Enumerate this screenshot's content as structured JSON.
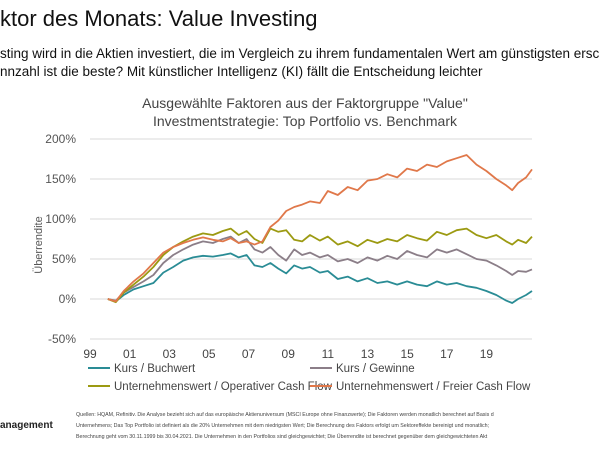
{
  "header": {
    "title": "ktor des Monats: Value Investing",
    "subtitle_line1": "sting wird in die Aktien investiert, die im Vergleich zu ihrem fundamentalen Wert am günstigsten ersch",
    "subtitle_line2": "nnzahl ist die beste? Mit künstlicher Intelligenz (KI) fällt die Entscheidung leichter"
  },
  "footer": {
    "brand": "anagement",
    "source_line1": "Quellen: HQAM, Refinitiv. Die Analyse bezieht sich auf das europäische Aktienuniversum (MSCI Europe ohne Finanzwerte); Die Faktoren werden monatlich berechnet auf Basis d",
    "source_line2": "Unternehmens; Das Top Portfolio ist definiert als die 20% Unternehmen mit dem niedrigsten Wert; Die Berechnung des Faktors erfolgt um Sektoreffekte bereinigt und monatlich;",
    "source_line3": "Berechnung geht vom 30.11.1999 bis 30.04.2021. Die Unternehmen in den Portfolios sind gleichgewichtet; Die Überrendite ist berechnet gegenüber dem gleichgewichteten Akt"
  },
  "chart_data": {
    "type": "line",
    "title_line1": "Ausgewählte Faktoren aus der Faktorgruppe \"Value\"",
    "title_line2": "Investmentstrategie: Top Portfolio vs. Benchmark",
    "ylabel": "Überrendite",
    "xlabel": "",
    "x_range": [
      1999,
      2021.3
    ],
    "ylim": [
      -50,
      200
    ],
    "y_ticks": [
      -50,
      0,
      50,
      100,
      150,
      200
    ],
    "y_tick_labels": [
      "-50%",
      "0%",
      "50%",
      "100%",
      "150%",
      "200%"
    ],
    "x_ticks": [
      1999,
      2001,
      2003,
      2005,
      2007,
      2009,
      2011,
      2013,
      2015,
      2017,
      2019
    ],
    "x_tick_labels": [
      "99",
      "01",
      "03",
      "05",
      "07",
      "09",
      "11",
      "13",
      "15",
      "17",
      "19"
    ],
    "grid": true,
    "legend_position": "bottom",
    "series": [
      {
        "name": "Kurs / Buchwert",
        "color": "#2a8c95",
        "points": [
          [
            1999.9,
            0
          ],
          [
            2000.3,
            -3
          ],
          [
            2000.7,
            5
          ],
          [
            2001.2,
            12
          ],
          [
            2001.7,
            16
          ],
          [
            2002.2,
            20
          ],
          [
            2002.7,
            33
          ],
          [
            2003.2,
            40
          ],
          [
            2003.7,
            48
          ],
          [
            2004.2,
            52
          ],
          [
            2004.7,
            54
          ],
          [
            2005.2,
            53
          ],
          [
            2005.7,
            55
          ],
          [
            2006.1,
            57
          ],
          [
            2006.5,
            52
          ],
          [
            2006.9,
            55
          ],
          [
            2007.3,
            42
          ],
          [
            2007.7,
            40
          ],
          [
            2008.1,
            45
          ],
          [
            2008.5,
            38
          ],
          [
            2008.9,
            32
          ],
          [
            2009.3,
            42
          ],
          [
            2009.7,
            38
          ],
          [
            2010.1,
            40
          ],
          [
            2010.6,
            33
          ],
          [
            2011.0,
            35
          ],
          [
            2011.5,
            25
          ],
          [
            2012.0,
            28
          ],
          [
            2012.5,
            22
          ],
          [
            2013.0,
            26
          ],
          [
            2013.5,
            20
          ],
          [
            2014.0,
            22
          ],
          [
            2014.5,
            18
          ],
          [
            2015.0,
            22
          ],
          [
            2015.5,
            18
          ],
          [
            2016.0,
            16
          ],
          [
            2016.5,
            22
          ],
          [
            2017.0,
            18
          ],
          [
            2017.5,
            20
          ],
          [
            2018.0,
            16
          ],
          [
            2018.5,
            14
          ],
          [
            2019.0,
            10
          ],
          [
            2019.5,
            5
          ],
          [
            2020.0,
            -2
          ],
          [
            2020.3,
            -5
          ],
          [
            2020.6,
            0
          ],
          [
            2021.0,
            5
          ],
          [
            2021.3,
            10
          ]
        ]
      },
      {
        "name": "Kurs / Gewinne",
        "color": "#8b7e88",
        "points": [
          [
            1999.9,
            0
          ],
          [
            2000.3,
            -2
          ],
          [
            2000.7,
            8
          ],
          [
            2001.2,
            15
          ],
          [
            2001.7,
            22
          ],
          [
            2002.2,
            30
          ],
          [
            2002.7,
            45
          ],
          [
            2003.2,
            55
          ],
          [
            2003.7,
            62
          ],
          [
            2004.2,
            68
          ],
          [
            2004.7,
            72
          ],
          [
            2005.2,
            70
          ],
          [
            2005.7,
            75
          ],
          [
            2006.1,
            78
          ],
          [
            2006.5,
            70
          ],
          [
            2006.9,
            75
          ],
          [
            2007.3,
            62
          ],
          [
            2007.7,
            58
          ],
          [
            2008.1,
            65
          ],
          [
            2008.5,
            55
          ],
          [
            2008.9,
            48
          ],
          [
            2009.3,
            62
          ],
          [
            2009.7,
            55
          ],
          [
            2010.1,
            58
          ],
          [
            2010.6,
            52
          ],
          [
            2011.0,
            55
          ],
          [
            2011.5,
            47
          ],
          [
            2012.0,
            50
          ],
          [
            2012.5,
            45
          ],
          [
            2013.0,
            52
          ],
          [
            2013.5,
            48
          ],
          [
            2014.0,
            54
          ],
          [
            2014.5,
            50
          ],
          [
            2015.0,
            60
          ],
          [
            2015.5,
            55
          ],
          [
            2016.0,
            52
          ],
          [
            2016.5,
            62
          ],
          [
            2017.0,
            58
          ],
          [
            2017.5,
            62
          ],
          [
            2018.0,
            56
          ],
          [
            2018.5,
            50
          ],
          [
            2019.0,
            48
          ],
          [
            2019.5,
            42
          ],
          [
            2020.0,
            35
          ],
          [
            2020.3,
            30
          ],
          [
            2020.6,
            35
          ],
          [
            2021.0,
            34
          ],
          [
            2021.3,
            37
          ]
        ]
      },
      {
        "name": "Unternehmenswert / Operativer Cash Flow",
        "color": "#9c9a12",
        "points": [
          [
            1999.9,
            0
          ],
          [
            2000.3,
            -4
          ],
          [
            2000.7,
            8
          ],
          [
            2001.2,
            18
          ],
          [
            2001.7,
            28
          ],
          [
            2002.2,
            40
          ],
          [
            2002.7,
            55
          ],
          [
            2003.2,
            65
          ],
          [
            2003.7,
            72
          ],
          [
            2004.2,
            78
          ],
          [
            2004.7,
            82
          ],
          [
            2005.2,
            80
          ],
          [
            2005.7,
            85
          ],
          [
            2006.1,
            88
          ],
          [
            2006.5,
            80
          ],
          [
            2006.9,
            85
          ],
          [
            2007.3,
            75
          ],
          [
            2007.7,
            70
          ],
          [
            2008.1,
            88
          ],
          [
            2008.5,
            84
          ],
          [
            2008.9,
            86
          ],
          [
            2009.3,
            74
          ],
          [
            2009.7,
            72
          ],
          [
            2010.1,
            80
          ],
          [
            2010.6,
            73
          ],
          [
            2011.0,
            78
          ],
          [
            2011.5,
            68
          ],
          [
            2012.0,
            72
          ],
          [
            2012.5,
            66
          ],
          [
            2013.0,
            74
          ],
          [
            2013.5,
            70
          ],
          [
            2014.0,
            75
          ],
          [
            2014.5,
            72
          ],
          [
            2015.0,
            80
          ],
          [
            2015.5,
            76
          ],
          [
            2016.0,
            73
          ],
          [
            2016.5,
            84
          ],
          [
            2017.0,
            80
          ],
          [
            2017.5,
            86
          ],
          [
            2018.0,
            88
          ],
          [
            2018.5,
            80
          ],
          [
            2019.0,
            76
          ],
          [
            2019.5,
            80
          ],
          [
            2020.0,
            72
          ],
          [
            2020.3,
            68
          ],
          [
            2020.6,
            74
          ],
          [
            2021.0,
            70
          ],
          [
            2021.3,
            78
          ]
        ]
      },
      {
        "name": "Unternehmenswert / Freier Cash Flow",
        "color": "#e0784a",
        "points": [
          [
            1999.9,
            0
          ],
          [
            2000.3,
            -3
          ],
          [
            2000.7,
            10
          ],
          [
            2001.2,
            22
          ],
          [
            2001.7,
            32
          ],
          [
            2002.2,
            45
          ],
          [
            2002.7,
            58
          ],
          [
            2003.2,
            65
          ],
          [
            2003.7,
            70
          ],
          [
            2004.2,
            74
          ],
          [
            2004.7,
            77
          ],
          [
            2005.2,
            74
          ],
          [
            2005.7,
            72
          ],
          [
            2006.1,
            76
          ],
          [
            2006.5,
            70
          ],
          [
            2006.9,
            72
          ],
          [
            2007.3,
            68
          ],
          [
            2007.7,
            72
          ],
          [
            2008.1,
            90
          ],
          [
            2008.5,
            98
          ],
          [
            2008.9,
            110
          ],
          [
            2009.3,
            115
          ],
          [
            2009.7,
            118
          ],
          [
            2010.1,
            122
          ],
          [
            2010.6,
            120
          ],
          [
            2011.0,
            135
          ],
          [
            2011.5,
            130
          ],
          [
            2012.0,
            140
          ],
          [
            2012.5,
            136
          ],
          [
            2013.0,
            148
          ],
          [
            2013.5,
            150
          ],
          [
            2014.0,
            156
          ],
          [
            2014.5,
            152
          ],
          [
            2015.0,
            163
          ],
          [
            2015.5,
            160
          ],
          [
            2016.0,
            168
          ],
          [
            2016.5,
            165
          ],
          [
            2017.0,
            172
          ],
          [
            2017.5,
            176
          ],
          [
            2018.0,
            180
          ],
          [
            2018.5,
            168
          ],
          [
            2019.0,
            160
          ],
          [
            2019.5,
            150
          ],
          [
            2020.0,
            142
          ],
          [
            2020.3,
            136
          ],
          [
            2020.6,
            145
          ],
          [
            2021.0,
            152
          ],
          [
            2021.3,
            162
          ]
        ]
      }
    ]
  }
}
